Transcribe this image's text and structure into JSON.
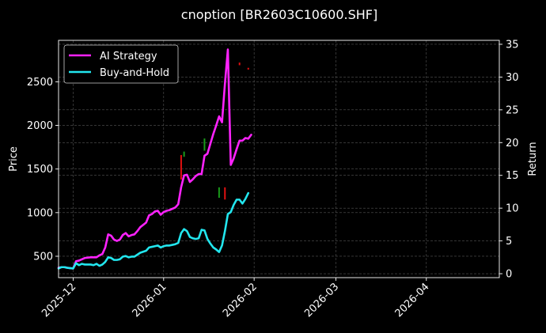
{
  "chart_data": {
    "type": "line",
    "title": "cnoption [BR2603C10600.SHF]",
    "ylabel_left": "Price",
    "ylabel_right": "Return",
    "x_ticks": [
      "2025-12",
      "2026-01",
      "2026-02",
      "2026-03",
      "2026-04"
    ],
    "x_tick_dates": [
      "2025-12-01",
      "2026-01-01",
      "2026-02-01",
      "2026-03-01",
      "2026-04-01"
    ],
    "xlim": [
      "2025-11-26",
      "2026-04-26"
    ],
    "ylim_left": [
      255,
      2975
    ],
    "yticks_left": [
      500,
      1000,
      1500,
      2000,
      2500
    ],
    "ylim_right": [
      -0.6,
      35.6
    ],
    "yticks_right": [
      0,
      5,
      10,
      15,
      20,
      25,
      30,
      35
    ],
    "grid": true,
    "legend_position": "top-left",
    "colors": {
      "ai": "#ff22ff",
      "bh": "#22e6ee",
      "up": "#1a9a1a",
      "down": "#e01010"
    },
    "series": [
      {
        "name": "AI Strategy",
        "axis": "right",
        "color": "#ff22ff",
        "points": [
          [
            "2025-11-26",
            0.9
          ],
          [
            "2025-11-27",
            1.0
          ],
          [
            "2025-11-28",
            1.0
          ],
          [
            "2025-11-29",
            0.9
          ],
          [
            "2025-12-01",
            0.8
          ],
          [
            "2025-12-02",
            1.9
          ],
          [
            "2025-12-03",
            2.0
          ],
          [
            "2025-12-04",
            2.2
          ],
          [
            "2025-12-05",
            2.4
          ],
          [
            "2025-12-07",
            2.5
          ],
          [
            "2025-12-08",
            2.5
          ],
          [
            "2025-12-09",
            2.5
          ],
          [
            "2025-12-10",
            2.8
          ],
          [
            "2025-12-11",
            3.0
          ],
          [
            "2025-12-12",
            4.0
          ],
          [
            "2025-12-13",
            6.0
          ],
          [
            "2025-12-14",
            5.8
          ],
          [
            "2025-12-15",
            5.2
          ],
          [
            "2025-12-16",
            5.0
          ],
          [
            "2025-12-17",
            5.2
          ],
          [
            "2025-12-18",
            5.9
          ],
          [
            "2025-12-19",
            6.2
          ],
          [
            "2025-12-20",
            5.7
          ],
          [
            "2025-12-21",
            5.9
          ],
          [
            "2025-12-22",
            6.0
          ],
          [
            "2025-12-23",
            6.5
          ],
          [
            "2025-12-24",
            7.1
          ],
          [
            "2025-12-26",
            7.8
          ],
          [
            "2025-12-27",
            8.9
          ],
          [
            "2025-12-28",
            9.1
          ],
          [
            "2025-12-29",
            9.5
          ],
          [
            "2025-12-30",
            9.6
          ],
          [
            "2025-12-31",
            9.0
          ],
          [
            "2026-01-01",
            9.4
          ],
          [
            "2026-01-02",
            9.6
          ],
          [
            "2026-01-03",
            9.7
          ],
          [
            "2026-01-04",
            9.9
          ],
          [
            "2026-01-05",
            10.1
          ],
          [
            "2026-01-06",
            10.6
          ],
          [
            "2026-01-07",
            13.2
          ],
          [
            "2026-01-08",
            15.0
          ],
          [
            "2026-01-09",
            15.1
          ],
          [
            "2026-01-10",
            14.0
          ],
          [
            "2026-01-11",
            14.4
          ],
          [
            "2026-01-12",
            14.9
          ],
          [
            "2026-01-13",
            15.2
          ],
          [
            "2026-01-14",
            15.2
          ],
          [
            "2026-01-15",
            18.0
          ],
          [
            "2026-01-16",
            18.3
          ],
          [
            "2026-01-17",
            19.8
          ],
          [
            "2026-01-18",
            21.3
          ],
          [
            "2026-01-19",
            22.6
          ],
          [
            "2026-01-20",
            24.0
          ],
          [
            "2026-01-21",
            23.1
          ],
          [
            "2026-01-22",
            29.0
          ],
          [
            "2026-01-23",
            34.2
          ],
          [
            "2026-01-24",
            16.6
          ],
          [
            "2026-01-25",
            17.6
          ],
          [
            "2026-01-26",
            19.0
          ],
          [
            "2026-01-27",
            20.3
          ],
          [
            "2026-01-28",
            20.3
          ],
          [
            "2026-01-29",
            20.7
          ],
          [
            "2026-01-30",
            20.6
          ],
          [
            "2026-01-31",
            21.2
          ]
        ]
      },
      {
        "name": "Buy-and-Hold",
        "axis": "right",
        "color": "#22e6ee",
        "points": [
          [
            "2025-11-26",
            0.8
          ],
          [
            "2025-11-27",
            1.0
          ],
          [
            "2025-11-28",
            1.0
          ],
          [
            "2025-11-29",
            0.9
          ],
          [
            "2025-12-01",
            0.8
          ],
          [
            "2025-12-02",
            1.6
          ],
          [
            "2025-12-03",
            1.3
          ],
          [
            "2025-12-04",
            1.5
          ],
          [
            "2025-12-05",
            1.4
          ],
          [
            "2025-12-07",
            1.4
          ],
          [
            "2025-12-08",
            1.3
          ],
          [
            "2025-12-09",
            1.5
          ],
          [
            "2025-12-10",
            1.2
          ],
          [
            "2025-12-11",
            1.4
          ],
          [
            "2025-12-12",
            1.8
          ],
          [
            "2025-12-13",
            2.5
          ],
          [
            "2025-12-14",
            2.4
          ],
          [
            "2025-12-15",
            2.1
          ],
          [
            "2025-12-16",
            2.1
          ],
          [
            "2025-12-17",
            2.2
          ],
          [
            "2025-12-18",
            2.6
          ],
          [
            "2025-12-19",
            2.7
          ],
          [
            "2025-12-20",
            2.5
          ],
          [
            "2025-12-21",
            2.6
          ],
          [
            "2025-12-22",
            2.6
          ],
          [
            "2025-12-23",
            2.9
          ],
          [
            "2025-12-24",
            3.2
          ],
          [
            "2025-12-26",
            3.5
          ],
          [
            "2025-12-27",
            4.0
          ],
          [
            "2025-12-28",
            4.1
          ],
          [
            "2025-12-29",
            4.2
          ],
          [
            "2025-12-30",
            4.3
          ],
          [
            "2025-12-31",
            4.0
          ],
          [
            "2026-01-01",
            4.2
          ],
          [
            "2026-01-02",
            4.3
          ],
          [
            "2026-01-03",
            4.3
          ],
          [
            "2026-01-04",
            4.4
          ],
          [
            "2026-01-05",
            4.5
          ],
          [
            "2026-01-06",
            4.7
          ],
          [
            "2026-01-07",
            6.2
          ],
          [
            "2026-01-08",
            6.8
          ],
          [
            "2026-01-09",
            6.5
          ],
          [
            "2026-01-10",
            5.6
          ],
          [
            "2026-01-11",
            5.4
          ],
          [
            "2026-01-12",
            5.3
          ],
          [
            "2026-01-13",
            5.4
          ],
          [
            "2026-01-14",
            6.7
          ],
          [
            "2026-01-15",
            6.6
          ],
          [
            "2026-01-16",
            5.3
          ],
          [
            "2026-01-17",
            4.6
          ],
          [
            "2026-01-18",
            4.0
          ],
          [
            "2026-01-19",
            3.7
          ],
          [
            "2026-01-20",
            3.3
          ],
          [
            "2026-01-21",
            4.3
          ],
          [
            "2026-01-22",
            6.5
          ],
          [
            "2026-01-23",
            9.1
          ],
          [
            "2026-01-24",
            9.4
          ],
          [
            "2026-01-25",
            10.5
          ],
          [
            "2026-01-26",
            11.3
          ],
          [
            "2026-01-27",
            11.3
          ],
          [
            "2026-01-28",
            10.7
          ],
          [
            "2026-01-29",
            11.4
          ],
          [
            "2026-01-30",
            12.3
          ]
        ]
      }
    ],
    "signals": [
      {
        "date": "2026-01-07",
        "axis": "left",
        "low": 1380,
        "high": 1660,
        "direction": "down"
      },
      {
        "date": "2026-01-08",
        "axis": "left",
        "low": 1640,
        "high": 1700,
        "direction": "up"
      },
      {
        "date": "2026-01-15",
        "axis": "left",
        "low": 1710,
        "high": 1850,
        "direction": "up"
      },
      {
        "date": "2026-01-20",
        "axis": "left",
        "low": 1170,
        "high": 1290,
        "direction": "up"
      },
      {
        "date": "2026-01-22",
        "axis": "left",
        "low": 1150,
        "high": 1290,
        "direction": "down"
      },
      {
        "date": "2026-01-27",
        "axis": "left",
        "low": 2690,
        "high": 2720,
        "direction": "down"
      },
      {
        "date": "2026-01-30",
        "axis": "left",
        "low": 2640,
        "high": 2660,
        "direction": "down"
      }
    ]
  }
}
